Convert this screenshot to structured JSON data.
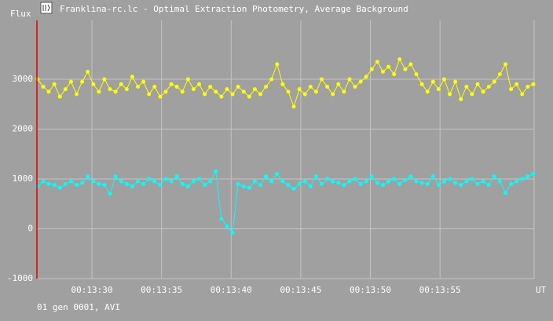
{
  "window_title": "Franklina-rc.lc - Optimal Extraction Photometry, Average Background",
  "status": "01 gen 0001, AVI",
  "chart_data": {
    "type": "line",
    "y_label": "Flux",
    "x_label": "UT",
    "x": [
      26.1,
      26.5,
      26.9,
      27.3,
      27.7,
      28.1,
      28.5,
      28.9,
      29.3,
      29.7,
      30.1,
      30.5,
      30.9,
      31.3,
      31.7,
      32.1,
      32.5,
      32.9,
      33.3,
      33.7,
      34.1,
      34.5,
      34.9,
      35.3,
      35.7,
      36.1,
      36.5,
      36.9,
      37.3,
      37.7,
      38.1,
      38.5,
      38.9,
      39.3,
      39.7,
      40.1,
      40.5,
      40.9,
      41.3,
      41.7,
      42.1,
      42.5,
      42.9,
      43.3,
      43.7,
      44.1,
      44.5,
      44.9,
      45.3,
      45.7,
      46.1,
      46.5,
      46.9,
      47.3,
      47.7,
      48.1,
      48.5,
      48.9,
      49.3,
      49.7,
      50.1,
      50.5,
      50.9,
      51.3,
      51.7,
      52.1,
      52.5,
      52.9,
      53.3,
      53.7,
      54.1,
      54.5,
      54.9,
      55.3,
      55.7,
      56.1,
      56.5,
      56.9,
      57.3,
      57.7,
      58.1,
      58.5,
      58.9,
      59.3,
      59.7,
      60.1,
      60.5,
      60.9,
      61.3,
      61.7
    ],
    "series": [
      {
        "color": "#ffff00",
        "values": [
          3000,
          2850,
          2750,
          2900,
          2650,
          2800,
          2950,
          2700,
          2950,
          3150,
          2900,
          2750,
          3000,
          2800,
          2750,
          2900,
          2800,
          3050,
          2850,
          2950,
          2700,
          2850,
          2650,
          2750,
          2900,
          2850,
          2750,
          3000,
          2800,
          2900,
          2700,
          2850,
          2750,
          2650,
          2800,
          2700,
          2850,
          2750,
          2650,
          2800,
          2700,
          2850,
          3000,
          3300,
          2900,
          2750,
          2450,
          2800,
          2700,
          2850,
          2750,
          3000,
          2850,
          2700,
          2900,
          2750,
          3000,
          2850,
          2950,
          3050,
          3200,
          3350,
          3150,
          3250,
          3100,
          3400,
          3200,
          3300,
          3100,
          2900,
          2750,
          2950,
          2800,
          3000,
          2700,
          2950,
          2600,
          2850,
          2700,
          2900,
          2750,
          2850,
          2950,
          3100,
          3300,
          2800,
          2900,
          2700,
          2850,
          2900
        ]
      },
      {
        "color": "#00ffff",
        "values": [
          850,
          950,
          900,
          880,
          820,
          900,
          950,
          880,
          920,
          1050,
          950,
          900,
          880,
          700,
          1050,
          950,
          900,
          850,
          950,
          900,
          1000,
          950,
          880,
          1000,
          950,
          1050,
          900,
          850,
          950,
          1000,
          880,
          950,
          1150,
          200,
          50,
          -80,
          900,
          850,
          820,
          950,
          880,
          1050,
          950,
          1100,
          950,
          880,
          800,
          900,
          950,
          850,
          1050,
          900,
          1000,
          950,
          920,
          880,
          950,
          1000,
          900,
          950,
          1050,
          920,
          880,
          950,
          1000,
          900,
          980,
          1050,
          950,
          920,
          900,
          1050,
          880,
          950,
          1000,
          920,
          880,
          950,
          1000,
          900,
          950,
          880,
          1050,
          950,
          720,
          900,
          950,
          1000,
          1050,
          1100
        ]
      }
    ],
    "xlim": [
      26.05,
      61.76
    ],
    "xticks": [
      {
        "value": 30,
        "label": "00:13:30"
      },
      {
        "value": 35,
        "label": "00:13:35"
      },
      {
        "value": 40,
        "label": "00:13:40"
      },
      {
        "value": 45,
        "label": "00:13:45"
      },
      {
        "value": 50,
        "label": "00:13:50"
      },
      {
        "value": 55,
        "label": "00:13:55"
      }
    ],
    "ylim": [
      -1000,
      4180
    ],
    "yticks": [
      -1000,
      0,
      1000,
      2000,
      3000
    ],
    "grid": true
  }
}
